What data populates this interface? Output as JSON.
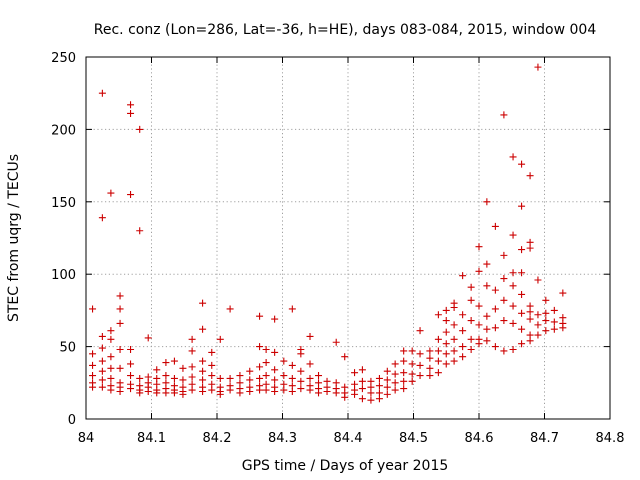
{
  "chart_data": {
    "type": "scatter",
    "title": "Rec. conz (Lon=286, Lat=-36, h=HE), days 083-084, 2015, window 004",
    "xlabel": "GPS time / Days of year 2015",
    "ylabel": "STEC from uqrg / TECUs",
    "xlim": [
      84,
      84.8
    ],
    "ylim": [
      0,
      250
    ],
    "xticks": [
      84,
      84.1,
      84.2,
      84.3,
      84.4,
      84.5,
      84.6,
      84.7,
      84.8
    ],
    "xtick_labels": [
      "84",
      "84.1",
      "84.2",
      "84.3",
      "84.4",
      "84.5",
      "84.6",
      "84.7",
      "84.8"
    ],
    "yticks": [
      0,
      50,
      100,
      150,
      200,
      250
    ],
    "ytick_labels": [
      "0",
      "50",
      "100",
      "150",
      "200",
      "250"
    ],
    "grid": true,
    "marker": "plus",
    "color": "#cc0000",
    "points": [
      [
        84.01,
        76
      ],
      [
        84.01,
        45
      ],
      [
        84.01,
        37
      ],
      [
        84.01,
        30
      ],
      [
        84.01,
        25
      ],
      [
        84.01,
        22
      ],
      [
        84.025,
        225
      ],
      [
        84.025,
        139
      ],
      [
        84.025,
        57
      ],
      [
        84.025,
        49
      ],
      [
        84.025,
        40
      ],
      [
        84.025,
        33
      ],
      [
        84.025,
        27
      ],
      [
        84.025,
        22
      ],
      [
        84.038,
        156
      ],
      [
        84.038,
        61
      ],
      [
        84.038,
        55
      ],
      [
        84.038,
        43
      ],
      [
        84.038,
        35
      ],
      [
        84.038,
        28
      ],
      [
        84.038,
        23
      ],
      [
        84.038,
        20
      ],
      [
        84.052,
        85
      ],
      [
        84.052,
        76
      ],
      [
        84.052,
        66
      ],
      [
        84.052,
        48
      ],
      [
        84.052,
        35
      ],
      [
        84.052,
        25
      ],
      [
        84.052,
        22
      ],
      [
        84.052,
        19
      ],
      [
        84.068,
        217
      ],
      [
        84.068,
        211
      ],
      [
        84.068,
        155
      ],
      [
        84.068,
        48
      ],
      [
        84.068,
        38
      ],
      [
        84.068,
        30
      ],
      [
        84.068,
        24
      ],
      [
        84.068,
        21
      ],
      [
        84.082,
        200
      ],
      [
        84.082,
        130
      ],
      [
        84.082,
        28
      ],
      [
        84.082,
        23
      ],
      [
        84.082,
        20
      ],
      [
        84.082,
        18
      ],
      [
        84.095,
        56
      ],
      [
        84.095,
        29
      ],
      [
        84.095,
        25
      ],
      [
        84.095,
        22
      ],
      [
        84.095,
        19
      ],
      [
        84.108,
        34
      ],
      [
        84.108,
        28
      ],
      [
        84.108,
        24
      ],
      [
        84.108,
        20
      ],
      [
        84.108,
        18
      ],
      [
        84.122,
        39
      ],
      [
        84.122,
        30
      ],
      [
        84.122,
        25
      ],
      [
        84.122,
        21
      ],
      [
        84.122,
        18
      ],
      [
        84.135,
        40
      ],
      [
        84.135,
        28
      ],
      [
        84.135,
        23
      ],
      [
        84.135,
        20
      ],
      [
        84.135,
        18
      ],
      [
        84.148,
        35
      ],
      [
        84.148,
        27
      ],
      [
        84.148,
        22
      ],
      [
        84.148,
        19
      ],
      [
        84.148,
        17
      ],
      [
        84.162,
        55
      ],
      [
        84.162,
        47
      ],
      [
        84.162,
        36
      ],
      [
        84.162,
        29
      ],
      [
        84.162,
        24
      ],
      [
        84.162,
        20
      ],
      [
        84.178,
        80
      ],
      [
        84.178,
        62
      ],
      [
        84.178,
        40
      ],
      [
        84.178,
        33
      ],
      [
        84.178,
        27
      ],
      [
        84.178,
        22
      ],
      [
        84.178,
        19
      ],
      [
        84.192,
        46
      ],
      [
        84.192,
        37
      ],
      [
        84.192,
        30
      ],
      [
        84.192,
        24
      ],
      [
        84.192,
        20
      ],
      [
        84.205,
        55
      ],
      [
        84.205,
        28
      ],
      [
        84.205,
        22
      ],
      [
        84.205,
        19
      ],
      [
        84.205,
        17
      ],
      [
        84.22,
        76
      ],
      [
        84.22,
        28
      ],
      [
        84.22,
        23
      ],
      [
        84.22,
        20
      ],
      [
        84.235,
        30
      ],
      [
        84.235,
        25
      ],
      [
        84.235,
        21
      ],
      [
        84.235,
        18
      ],
      [
        84.25,
        33
      ],
      [
        84.25,
        27
      ],
      [
        84.25,
        22
      ],
      [
        84.25,
        19
      ],
      [
        84.265,
        71
      ],
      [
        84.265,
        50
      ],
      [
        84.265,
        36
      ],
      [
        84.265,
        28
      ],
      [
        84.265,
        23
      ],
      [
        84.265,
        20
      ],
      [
        84.275,
        48
      ],
      [
        84.275,
        39
      ],
      [
        84.275,
        30
      ],
      [
        84.275,
        24
      ],
      [
        84.275,
        20
      ],
      [
        84.288,
        69
      ],
      [
        84.288,
        46
      ],
      [
        84.288,
        34
      ],
      [
        84.288,
        27
      ],
      [
        84.288,
        22
      ],
      [
        84.288,
        19
      ],
      [
        84.302,
        40
      ],
      [
        84.302,
        30
      ],
      [
        84.302,
        24
      ],
      [
        84.302,
        20
      ],
      [
        84.315,
        76
      ],
      [
        84.315,
        37
      ],
      [
        84.315,
        28
      ],
      [
        84.315,
        23
      ],
      [
        84.315,
        19
      ],
      [
        84.328,
        48
      ],
      [
        84.328,
        45
      ],
      [
        84.328,
        33
      ],
      [
        84.328,
        26
      ],
      [
        84.328,
        21
      ],
      [
        84.342,
        57
      ],
      [
        84.342,
        38
      ],
      [
        84.342,
        28
      ],
      [
        84.342,
        23
      ],
      [
        84.342,
        20
      ],
      [
        84.355,
        30
      ],
      [
        84.355,
        25
      ],
      [
        84.355,
        21
      ],
      [
        84.355,
        18
      ],
      [
        84.368,
        26
      ],
      [
        84.368,
        22
      ],
      [
        84.368,
        19
      ],
      [
        84.382,
        53
      ],
      [
        84.382,
        25
      ],
      [
        84.382,
        21
      ],
      [
        84.382,
        18
      ],
      [
        84.395,
        43
      ],
      [
        84.395,
        22
      ],
      [
        84.395,
        18
      ],
      [
        84.395,
        15
      ],
      [
        84.41,
        32
      ],
      [
        84.41,
        24
      ],
      [
        84.41,
        20
      ],
      [
        84.41,
        17
      ],
      [
        84.422,
        34
      ],
      [
        84.422,
        26
      ],
      [
        84.422,
        21
      ],
      [
        84.422,
        14
      ],
      [
        84.435,
        26
      ],
      [
        84.435,
        22
      ],
      [
        84.435,
        18
      ],
      [
        84.435,
        13
      ],
      [
        84.448,
        28
      ],
      [
        84.448,
        23
      ],
      [
        84.448,
        18
      ],
      [
        84.448,
        14
      ],
      [
        84.46,
        33
      ],
      [
        84.46,
        27
      ],
      [
        84.46,
        22
      ],
      [
        84.46,
        17
      ],
      [
        84.472,
        38
      ],
      [
        84.472,
        31
      ],
      [
        84.472,
        25
      ],
      [
        84.472,
        20
      ],
      [
        84.485,
        47
      ],
      [
        84.485,
        40
      ],
      [
        84.485,
        32
      ],
      [
        84.485,
        26
      ],
      [
        84.485,
        21
      ],
      [
        84.498,
        47
      ],
      [
        84.498,
        38
      ],
      [
        84.498,
        31
      ],
      [
        84.498,
        26
      ],
      [
        84.51,
        61
      ],
      [
        84.51,
        45
      ],
      [
        84.51,
        37
      ],
      [
        84.51,
        30
      ],
      [
        84.525,
        47
      ],
      [
        84.525,
        42
      ],
      [
        84.525,
        35
      ],
      [
        84.525,
        30
      ],
      [
        84.538,
        72
      ],
      [
        84.538,
        55
      ],
      [
        84.538,
        47
      ],
      [
        84.538,
        40
      ],
      [
        84.538,
        32
      ],
      [
        84.55,
        75
      ],
      [
        84.55,
        68
      ],
      [
        84.55,
        60
      ],
      [
        84.55,
        52
      ],
      [
        84.55,
        45
      ],
      [
        84.55,
        38
      ],
      [
        84.562,
        80
      ],
      [
        84.562,
        77
      ],
      [
        84.562,
        65
      ],
      [
        84.562,
        55
      ],
      [
        84.562,
        47
      ],
      [
        84.562,
        40
      ],
      [
        84.575,
        99
      ],
      [
        84.575,
        72
      ],
      [
        84.575,
        61
      ],
      [
        84.575,
        50
      ],
      [
        84.575,
        43
      ],
      [
        84.588,
        91
      ],
      [
        84.588,
        82
      ],
      [
        84.588,
        68
      ],
      [
        84.588,
        55
      ],
      [
        84.588,
        48
      ],
      [
        84.6,
        119
      ],
      [
        84.6,
        102
      ],
      [
        84.6,
        78
      ],
      [
        84.6,
        65
      ],
      [
        84.6,
        55
      ],
      [
        84.6,
        52
      ],
      [
        84.612,
        150
      ],
      [
        84.612,
        107
      ],
      [
        84.612,
        92
      ],
      [
        84.612,
        71
      ],
      [
        84.612,
        62
      ],
      [
        84.612,
        54
      ],
      [
        84.625,
        133
      ],
      [
        84.625,
        89
      ],
      [
        84.625,
        76
      ],
      [
        84.625,
        63
      ],
      [
        84.625,
        50
      ],
      [
        84.638,
        210
      ],
      [
        84.638,
        113
      ],
      [
        84.638,
        97
      ],
      [
        84.638,
        82
      ],
      [
        84.638,
        68
      ],
      [
        84.638,
        47
      ],
      [
        84.652,
        181
      ],
      [
        84.652,
        127
      ],
      [
        84.652,
        101
      ],
      [
        84.652,
        92
      ],
      [
        84.652,
        78
      ],
      [
        84.652,
        66
      ],
      [
        84.652,
        48
      ],
      [
        84.665,
        176
      ],
      [
        84.665,
        147
      ],
      [
        84.665,
        117
      ],
      [
        84.665,
        101
      ],
      [
        84.665,
        86
      ],
      [
        84.665,
        73
      ],
      [
        84.665,
        62
      ],
      [
        84.665,
        52
      ],
      [
        84.678,
        168
      ],
      [
        84.678,
        122
      ],
      [
        84.678,
        118
      ],
      [
        84.678,
        78
      ],
      [
        84.678,
        74
      ],
      [
        84.678,
        69
      ],
      [
        84.678,
        58
      ],
      [
        84.678,
        54
      ],
      [
        84.69,
        243
      ],
      [
        84.69,
        96
      ],
      [
        84.69,
        72
      ],
      [
        84.69,
        65
      ],
      [
        84.69,
        58
      ],
      [
        84.702,
        82
      ],
      [
        84.702,
        73
      ],
      [
        84.702,
        68
      ],
      [
        84.702,
        61
      ],
      [
        84.715,
        75
      ],
      [
        84.715,
        67
      ],
      [
        84.715,
        62
      ],
      [
        84.728,
        87
      ],
      [
        84.728,
        70
      ],
      [
        84.728,
        66
      ],
      [
        84.728,
        63
      ]
    ]
  }
}
